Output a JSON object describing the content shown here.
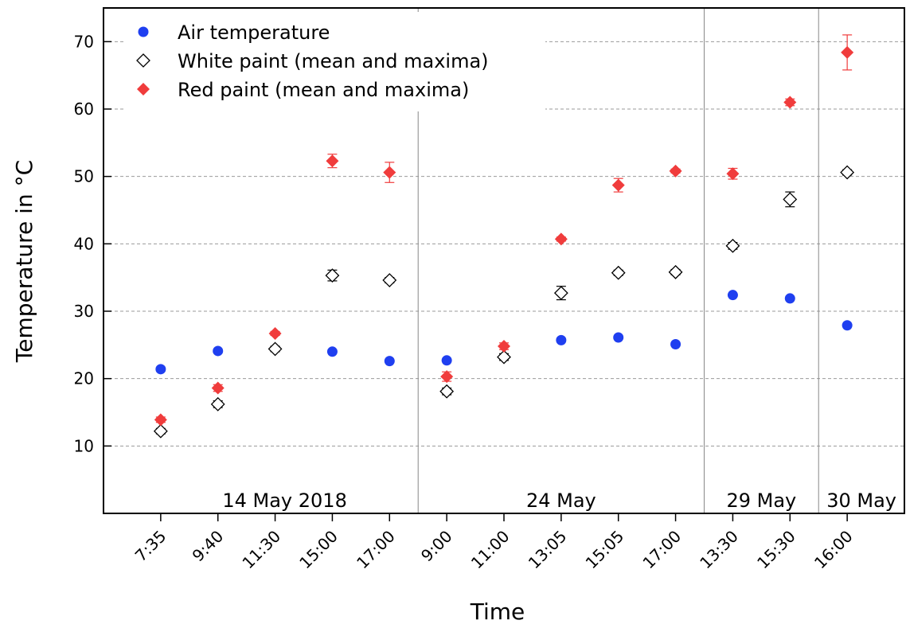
{
  "chart_data": {
    "type": "scatter",
    "x_label": "Time",
    "y_label": "Temperature in °C",
    "categories": [
      "7:35",
      "9:40",
      "11:30",
      "15:00",
      "17:00",
      "9:00",
      "11:00",
      "13:05",
      "15:05",
      "17:00",
      "13:30",
      "15:30",
      "16:00"
    ],
    "groups": [
      {
        "label": "14 May 2018",
        "count": 5
      },
      {
        "label": "24 May",
        "count": 5
      },
      {
        "label": "29 May",
        "count": 2
      },
      {
        "label": "30 May",
        "count": 1
      }
    ],
    "series": [
      {
        "name": "Air temperature",
        "color": "#1f3ff0",
        "marker": "circle",
        "values": [
          21.4,
          24.1,
          null,
          24.0,
          22.6,
          22.7,
          null,
          25.7,
          26.1,
          25.1,
          32.4,
          31.9,
          27.9
        ]
      },
      {
        "name": "White paint (mean and maxima)",
        "color": "#000000",
        "marker": "open-diamond",
        "values": [
          12.2,
          16.2,
          24.4,
          35.3,
          34.6,
          18.1,
          23.2,
          32.7,
          35.7,
          35.8,
          39.7,
          46.6,
          50.6
        ],
        "errors": [
          0.4,
          0.5,
          0.4,
          0.8,
          0.4,
          0.5,
          0.5,
          1.0,
          0.4,
          0.4,
          0.5,
          1.1,
          0.4
        ]
      },
      {
        "name": "Red paint (mean and maxima)",
        "color": "#f03c3c",
        "marker": "diamond",
        "values": [
          13.9,
          18.6,
          26.7,
          52.3,
          50.6,
          20.3,
          24.8,
          40.7,
          48.7,
          50.8,
          50.4,
          61.0,
          68.4
        ],
        "errors": [
          0.4,
          0.5,
          0.3,
          1.0,
          1.5,
          0.7,
          0.5,
          0.3,
          1.0,
          0.3,
          0.8,
          0.5,
          2.6
        ]
      }
    ],
    "ylim": [
      0,
      75
    ],
    "yticks": [
      10,
      20,
      30,
      40,
      50,
      60,
      70
    ],
    "grid": true,
    "legend": "upper left"
  }
}
